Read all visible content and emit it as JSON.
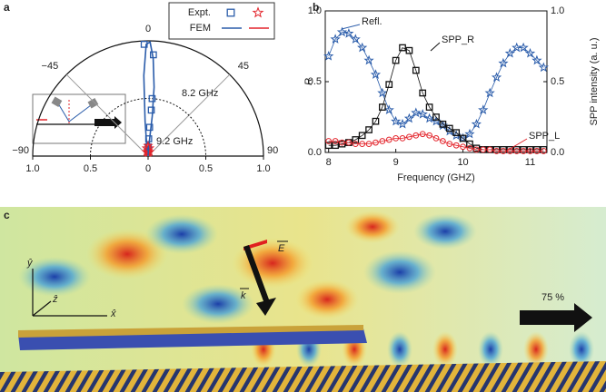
{
  "chart_data": [
    {
      "type": "polar",
      "panel": "a",
      "thetalim": [
        -90,
        90
      ],
      "thetaticks": [
        {
          "value": -90,
          "label": "−90"
        },
        {
          "value": -45,
          "label": "−45"
        },
        0,
        45,
        90
      ],
      "rlim": [
        0,
        1
      ],
      "rticks": [
        0,
        {
          "value": 0.5,
          "label": "0.5"
        },
        {
          "value": 1,
          "label": "1.0"
        }
      ],
      "series": [
        {
          "name": "Expt.",
          "style": "markers",
          "groups": [
            {
              "marker": "square",
              "color": "#2a5caa",
              "theta": [
                -2,
                3,
                4,
                4,
                3,
                2,
                1
              ],
              "r": [
                0.97,
                0.88,
                0.5,
                0.4,
                0.25,
                0.15,
                0.08
              ]
            },
            {
              "marker": "star",
              "color": "#e3242b",
              "theta": [
                -20,
                -10,
                0,
                10,
                20,
                0,
                -5,
                5
              ],
              "r": [
                0.04,
                0.07,
                0.09,
                0.07,
                0.04,
                0.05,
                0.03,
                0.03
              ]
            }
          ]
        },
        {
          "name": "FEM",
          "style": "line",
          "groups": [
            {
              "color": "#2a5caa",
              "theta": [
                -10,
                -5,
                -3,
                -1,
                1,
                3,
                5,
                6,
                5,
                3,
                0
              ],
              "r": [
                0.05,
                0.3,
                0.7,
                0.97,
                0.99,
                0.85,
                0.6,
                0.35,
                0.15,
                0.05,
                0
              ]
            },
            {
              "color": "#e3242b",
              "theta": [
                -40,
                -20,
                -5,
                0,
                5,
                20,
                40
              ],
              "r": [
                0.02,
                0.06,
                0.1,
                0.11,
                0.1,
                0.06,
                0.02
              ]
            }
          ]
        }
      ],
      "annotations": [
        {
          "text": "8.2 GHz",
          "color": "#2a5caa"
        },
        {
          "text": "9.2 GHz",
          "color": "#e3242b"
        }
      ]
    },
    {
      "type": "line",
      "panel": "b",
      "x": [
        8.0,
        8.1,
        8.2,
        8.3,
        8.4,
        8.5,
        8.6,
        8.7,
        8.8,
        8.9,
        9.0,
        9.1,
        9.2,
        9.3,
        9.4,
        9.5,
        9.6,
        9.7,
        9.8,
        9.9,
        10.0,
        10.1,
        10.2,
        10.3,
        10.4,
        10.5,
        10.6,
        10.7,
        10.8,
        10.9,
        11.0,
        11.1,
        11.2
      ],
      "xlim": [
        7.95,
        11.25
      ],
      "xticks": [
        8,
        9,
        10,
        11
      ],
      "ylim": [
        0,
        1
      ],
      "yticks": [
        {
          "value": 0,
          "label": "0.0"
        },
        {
          "value": 0.5,
          "label": "0.5"
        },
        {
          "value": 1,
          "label": "1.0"
        }
      ],
      "y2lim": [
        0,
        1
      ],
      "y2ticks": [
        {
          "value": 0,
          "label": "0.0"
        },
        {
          "value": 0.5,
          "label": "0.5"
        },
        {
          "value": 1,
          "label": "1.0"
        }
      ],
      "xlabel": "Frequency (GHZ)",
      "ylabel": "R",
      "y2label": "SPP intensity (a. u.)",
      "series": [
        {
          "name": "Refl.",
          "color": "#2a5caa",
          "marker": "star",
          "values": [
            0.68,
            0.8,
            0.85,
            0.84,
            0.8,
            0.74,
            0.65,
            0.55,
            0.42,
            0.3,
            0.22,
            0.2,
            0.24,
            0.28,
            0.27,
            0.24,
            0.22,
            0.19,
            0.15,
            0.12,
            0.1,
            0.13,
            0.2,
            0.3,
            0.42,
            0.53,
            0.63,
            0.7,
            0.74,
            0.74,
            0.7,
            0.65,
            0.6
          ]
        },
        {
          "name": "SPP_R",
          "color": "#111111",
          "marker": "square",
          "axis": "y2",
          "values": [
            0.05,
            0.05,
            0.06,
            0.07,
            0.09,
            0.12,
            0.16,
            0.22,
            0.32,
            0.48,
            0.65,
            0.74,
            0.72,
            0.58,
            0.42,
            0.32,
            0.25,
            0.2,
            0.17,
            0.14,
            0.1,
            0.06,
            0.03,
            0.02,
            0.02,
            0.02,
            0.02,
            0.02,
            0.02,
            0.02,
            0.02,
            0.02,
            0.02
          ]
        },
        {
          "name": "SPP_L",
          "color": "#e3242b",
          "marker": "circle",
          "axis": "y2",
          "values": [
            0.08,
            0.08,
            0.07,
            0.07,
            0.06,
            0.06,
            0.06,
            0.07,
            0.08,
            0.09,
            0.1,
            0.1,
            0.11,
            0.12,
            0.13,
            0.12,
            0.1,
            0.08,
            0.06,
            0.05,
            0.04,
            0.03,
            0.02,
            0.02,
            0.02,
            0.01,
            0.01,
            0.01,
            0.01,
            0.01,
            0.01,
            0.01,
            0.01
          ]
        }
      ]
    }
  ],
  "panel_c": {
    "panel": "c",
    "axis_y": "ŷ",
    "axis_z": "ẑ",
    "axis_x": "x̂",
    "field": "E",
    "wave": "k",
    "transmission": "75 %"
  }
}
